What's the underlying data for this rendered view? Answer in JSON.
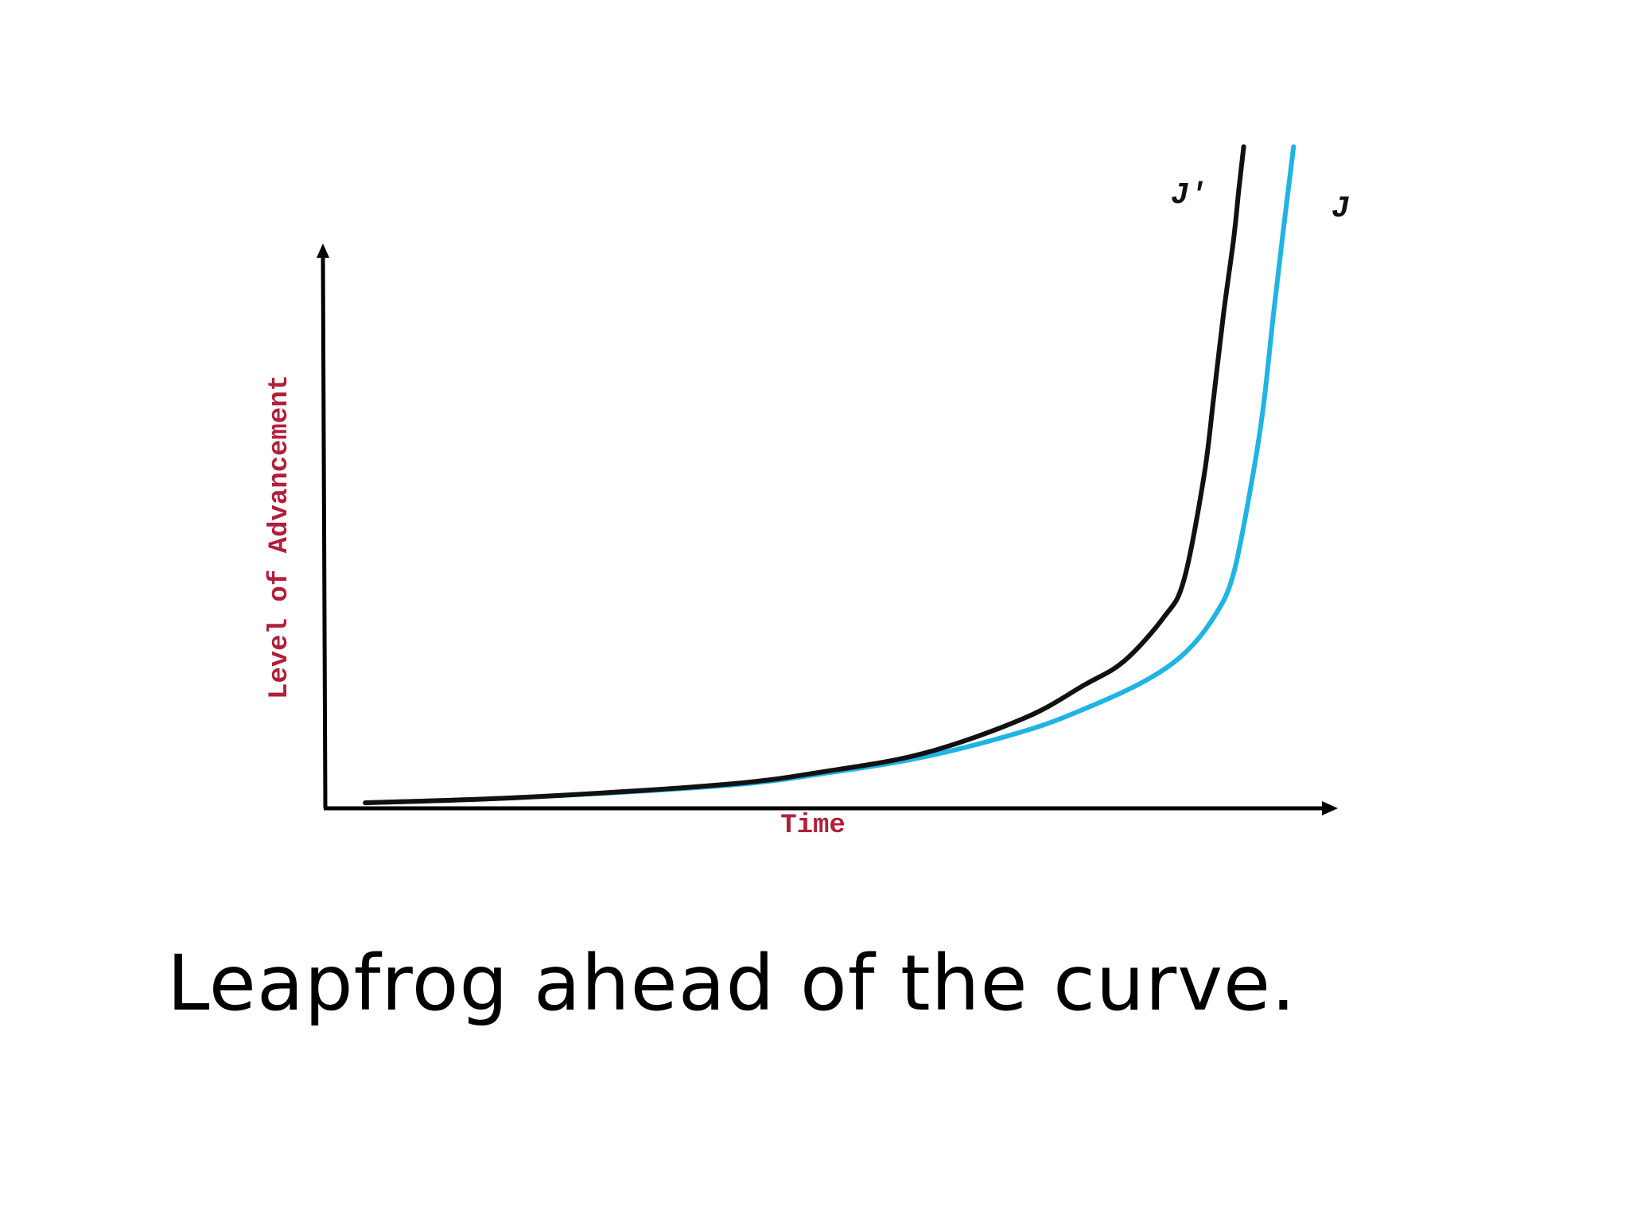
{
  "slide": {
    "caption": "Leapfrog ahead of the curve."
  },
  "chart_data": {
    "type": "line",
    "xlabel": "Time",
    "ylabel": "Level of Advancement",
    "grid": false,
    "legend": "none",
    "x_ticks": false,
    "y_ticks": false,
    "series": [
      {
        "name": "J′",
        "color": "#111111",
        "x": [
          0.04,
          0.2,
          0.4,
          0.5,
          0.6,
          0.7,
          0.76,
          0.8,
          0.84,
          0.86,
          0.88,
          0.89,
          0.9,
          0.91,
          0.915,
          0.92
        ],
        "y": [
          0.015,
          0.03,
          0.065,
          0.1,
          0.15,
          0.245,
          0.335,
          0.4,
          0.52,
          0.62,
          0.9,
          1.12,
          1.35,
          1.55,
          1.68,
          1.8
        ]
      },
      {
        "name": "J",
        "color": "#1fb4e3",
        "x": [
          0.04,
          0.2,
          0.4,
          0.5,
          0.6,
          0.7,
          0.76,
          0.82,
          0.86,
          0.89,
          0.91,
          0.93,
          0.94,
          0.95,
          0.96,
          0.97
        ],
        "y": [
          0.015,
          0.03,
          0.062,
          0.095,
          0.14,
          0.21,
          0.27,
          0.345,
          0.42,
          0.52,
          0.64,
          0.92,
          1.1,
          1.35,
          1.58,
          1.8
        ]
      }
    ]
  }
}
